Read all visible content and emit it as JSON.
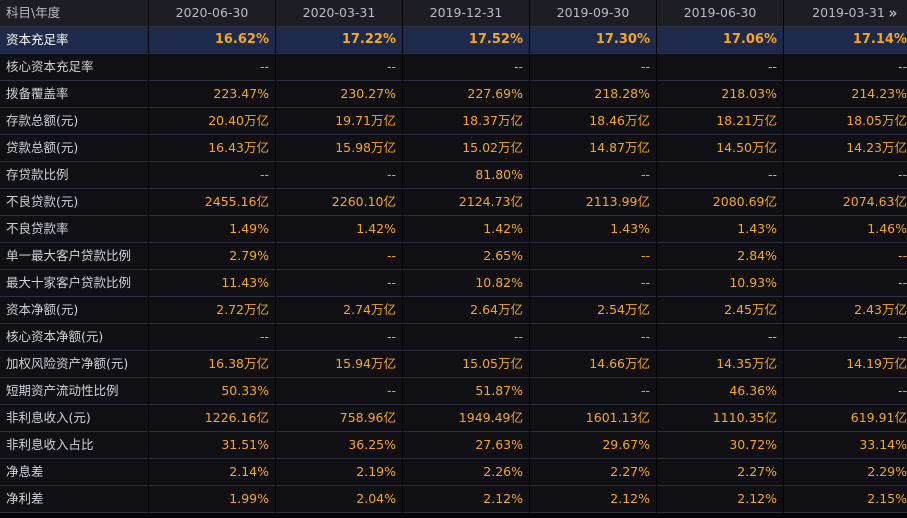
{
  "header": {
    "corner_label": "科目\\年度",
    "dates": [
      "2020-06-30",
      "2020-03-31",
      "2019-12-31",
      "2019-09-30",
      "2019-06-30",
      "2019-03-31"
    ],
    "more_icon": "»"
  },
  "rows": [
    {
      "label": "资本充足率",
      "values": [
        "16.62%",
        "17.22%",
        "17.52%",
        "17.30%",
        "17.06%",
        "17.14%"
      ]
    },
    {
      "label": "核心资本充足率",
      "values": [
        "--",
        "--",
        "--",
        "--",
        "--",
        "--"
      ]
    },
    {
      "label": "拨备覆盖率",
      "values": [
        "223.47%",
        "230.27%",
        "227.69%",
        "218.28%",
        "218.03%",
        "214.23%"
      ]
    },
    {
      "label": "存款总额(元)",
      "values": [
        "20.40万亿",
        "19.71万亿",
        "18.37万亿",
        "18.46万亿",
        "18.21万亿",
        "18.05万亿"
      ]
    },
    {
      "label": "贷款总额(元)",
      "values": [
        "16.43万亿",
        "15.98万亿",
        "15.02万亿",
        "14.87万亿",
        "14.50万亿",
        "14.23万亿"
      ]
    },
    {
      "label": "存贷款比例",
      "values": [
        "--",
        "--",
        "81.80%",
        "--",
        "--",
        "--"
      ]
    },
    {
      "label": "不良贷款(元)",
      "values": [
        "2455.16亿",
        "2260.10亿",
        "2124.73亿",
        "2113.99亿",
        "2080.69亿",
        "2074.63亿"
      ]
    },
    {
      "label": "不良贷款率",
      "values": [
        "1.49%",
        "1.42%",
        "1.42%",
        "1.43%",
        "1.43%",
        "1.46%"
      ]
    },
    {
      "label": "单一最大客户贷款比例",
      "values": [
        "2.79%",
        "--",
        "2.65%",
        "--",
        "2.84%",
        "--"
      ]
    },
    {
      "label": "最大十家客户贷款比例",
      "values": [
        "11.43%",
        "--",
        "10.82%",
        "--",
        "10.93%",
        "--"
      ]
    },
    {
      "label": "资本净额(元)",
      "values": [
        "2.72万亿",
        "2.74万亿",
        "2.64万亿",
        "2.54万亿",
        "2.45万亿",
        "2.43万亿"
      ]
    },
    {
      "label": "核心资本净额(元)",
      "values": [
        "--",
        "--",
        "--",
        "--",
        "--",
        "--"
      ]
    },
    {
      "label": "加权风险资产净额(元)",
      "values": [
        "16.38万亿",
        "15.94万亿",
        "15.05万亿",
        "14.66万亿",
        "14.35万亿",
        "14.19万亿"
      ]
    },
    {
      "label": "短期资产流动性比例",
      "values": [
        "50.33%",
        "--",
        "51.87%",
        "--",
        "46.36%",
        "--"
      ]
    },
    {
      "label": "非利息收入(元)",
      "values": [
        "1226.16亿",
        "758.96亿",
        "1949.49亿",
        "1601.13亿",
        "1110.35亿",
        "619.91亿"
      ]
    },
    {
      "label": "非利息收入占比",
      "values": [
        "31.51%",
        "36.25%",
        "27.63%",
        "29.67%",
        "30.72%",
        "33.14%"
      ]
    },
    {
      "label": "净息差",
      "values": [
        "2.14%",
        "2.19%",
        "2.26%",
        "2.27%",
        "2.27%",
        "2.29%"
      ]
    },
    {
      "label": "净利差",
      "values": [
        "1.99%",
        "2.04%",
        "2.12%",
        "2.12%",
        "2.12%",
        "2.15%"
      ]
    }
  ],
  "colors": {
    "value_text": "#f5a623",
    "label_text": "#cdd0d8",
    "highlight_row": "#1e2a4a",
    "header_bg": "#1d1d24",
    "cell_bg": "#101014"
  }
}
